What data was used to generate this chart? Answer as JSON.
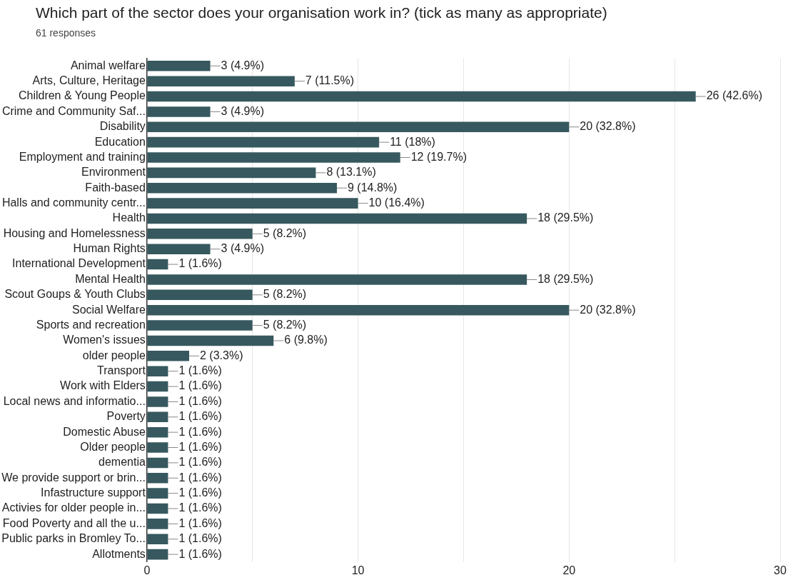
{
  "chart_data": {
    "type": "bar",
    "orientation": "horizontal",
    "title": "Which part of the sector does your organisation work in? (tick as many as appropriate)",
    "subtitle": "61 responses",
    "categories": [
      "Animal welfare",
      "Arts, Culture, Heritage",
      "Children & Young People",
      "Crime and Community Saf...",
      "Disability",
      "Education",
      "Employment and training",
      "Environment",
      "Faith-based",
      "Halls and community centr...",
      "Health",
      "Housing and Homelessness",
      "Human Rights",
      "International Development",
      "Mental Health",
      "Scout Goups & Youth Clubs",
      "Social Welfare",
      "Sports and recreation",
      "Women's issues",
      "older people",
      "Transport",
      "Work with Elders",
      "Local news and informatio...",
      "Poverty",
      "Domestic Abuse",
      "Older people",
      "dementia",
      "We provide support or brin...",
      "Infastructure support",
      "Activies for older people in...",
      "Food Poverty and all the u...",
      "Public parks in Bromley To...",
      "Allotments"
    ],
    "values": [
      3,
      7,
      26,
      3,
      20,
      11,
      12,
      8,
      9,
      10,
      18,
      5,
      3,
      1,
      18,
      5,
      20,
      5,
      6,
      2,
      1,
      1,
      1,
      1,
      1,
      1,
      1,
      1,
      1,
      1,
      1,
      1,
      1
    ],
    "value_labels": [
      "3 (4.9%)",
      "7 (11.5%)",
      "26 (42.6%)",
      "3 (4.9%)",
      "20 (32.8%)",
      "11 (18%)",
      "12 (19.7%)",
      "8 (13.1%)",
      "9 (14.8%)",
      "10 (16.4%)",
      "18 (29.5%)",
      "5 (8.2%)",
      "3 (4.9%)",
      "1 (1.6%)",
      "18 (29.5%)",
      "5 (8.2%)",
      "20 (32.8%)",
      "5 (8.2%)",
      "6 (9.8%)",
      "2 (3.3%)",
      "1 (1.6%)",
      "1 (1.6%)",
      "1 (1.6%)",
      "1 (1.6%)",
      "1 (1.6%)",
      "1 (1.6%)",
      "1 (1.6%)",
      "1 (1.6%)",
      "1 (1.6%)",
      "1 (1.6%)",
      "1 (1.6%)",
      "1 (1.6%)",
      "1 (1.6%)"
    ],
    "color": "#37585f",
    "xlim": [
      0,
      30
    ],
    "xticks": [
      0,
      {
        "value": 5,
        "label": null
      },
      10,
      {
        "value": 15,
        "label": null
      },
      20,
      {
        "value": 25,
        "label": null
      },
      30
    ],
    "grid": "x",
    "legend": false
  }
}
